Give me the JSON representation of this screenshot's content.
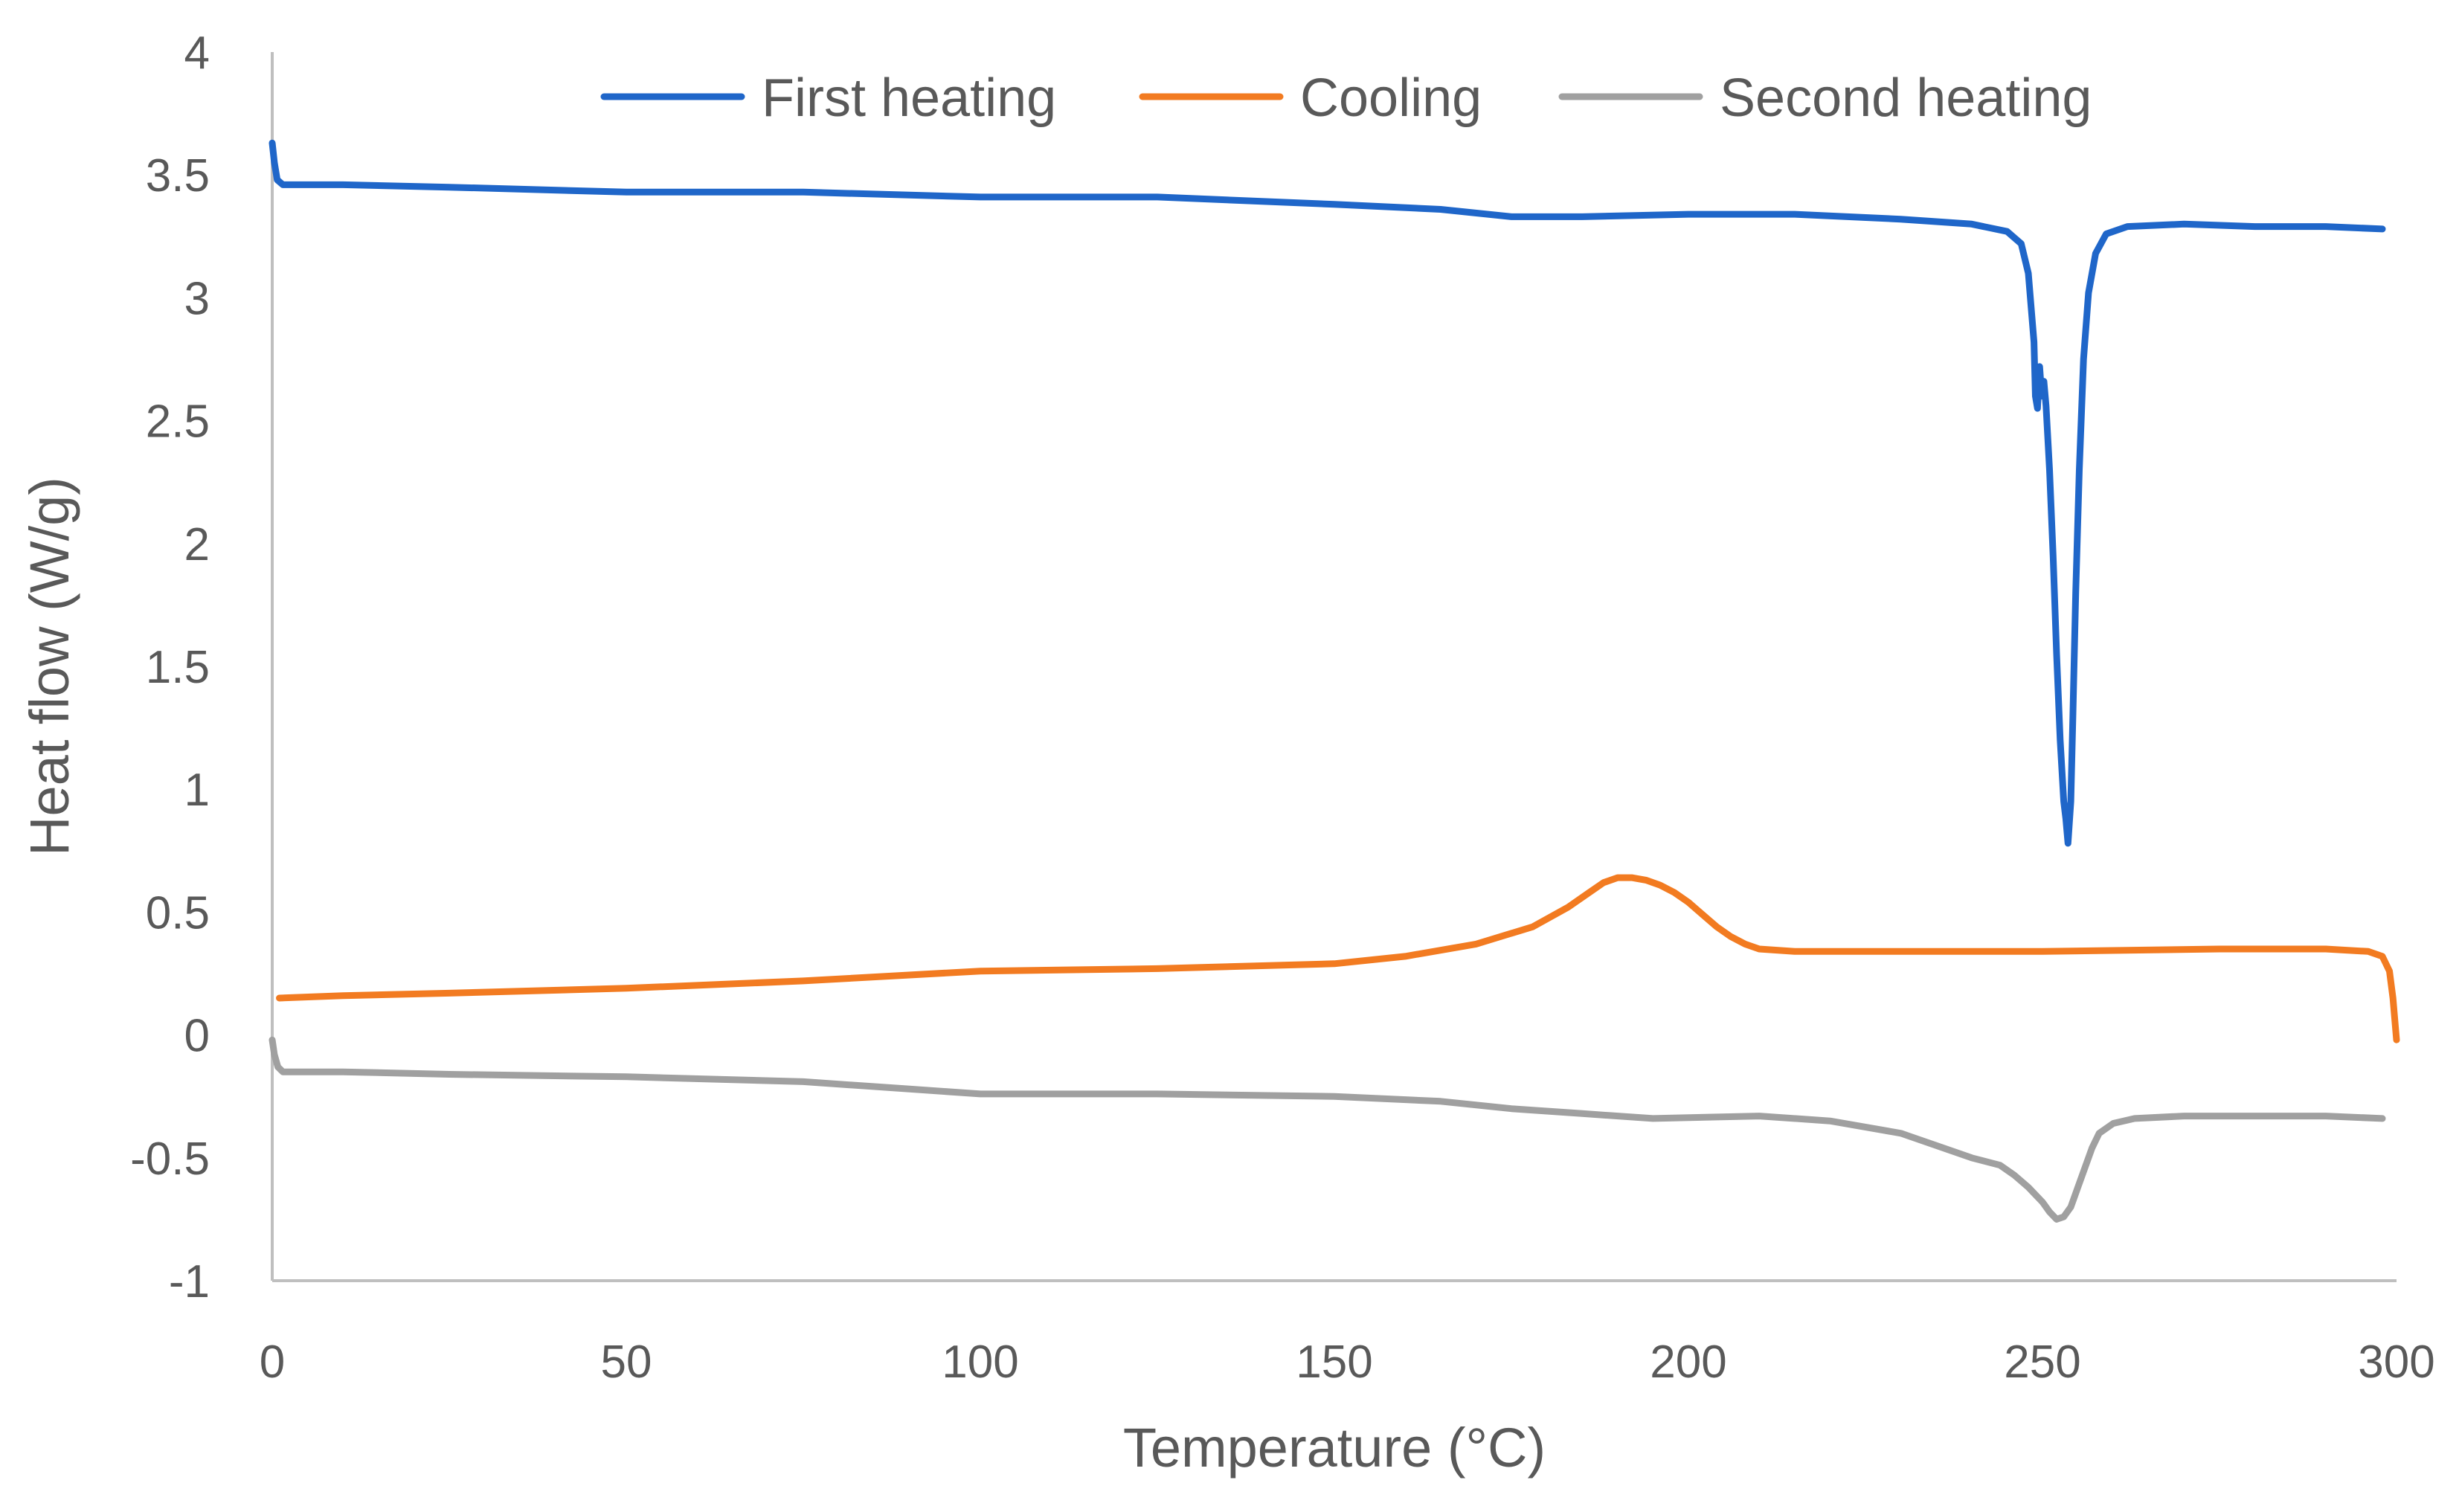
{
  "chart_data": {
    "type": "line",
    "title": "",
    "xlabel": "Temperature (°C)",
    "ylabel": "Heat flow (W/g)",
    "xlim": [
      0,
      300
    ],
    "ylim": [
      -1,
      4
    ],
    "xticks": [
      0,
      50,
      100,
      150,
      200,
      250,
      300
    ],
    "xtick_labels": [
      "0",
      "50",
      "100",
      "150",
      "200",
      "250",
      "300"
    ],
    "yticks": [
      -1,
      -0.5,
      0,
      0.5,
      1,
      1.5,
      2,
      2.5,
      3,
      3.5,
      4
    ],
    "ytick_labels": [
      "-1",
      "-0.5",
      "0",
      "0.5",
      "1",
      "1.5",
      "2",
      "2.5",
      "3",
      "3.5",
      "4"
    ],
    "grid": false,
    "legend_position": "top",
    "series": [
      {
        "name": "First heating",
        "color": "#1F66C9",
        "x": [
          0,
          0.3,
          0.7,
          1.5,
          3,
          10,
          25,
          50,
          75,
          100,
          125,
          150,
          165,
          175,
          185,
          200,
          215,
          230,
          240,
          245,
          247,
          248,
          248.8,
          249,
          249.3,
          249.6,
          249.9,
          250.2,
          250.5,
          251,
          251.5,
          252,
          252.5,
          253,
          253.3,
          253.6,
          254,
          254.3,
          254.7,
          255.2,
          255.8,
          256.5,
          257.5,
          259,
          262,
          270,
          280,
          290,
          298
        ],
        "y": [
          3.63,
          3.55,
          3.48,
          3.46,
          3.46,
          3.46,
          3.45,
          3.43,
          3.43,
          3.41,
          3.41,
          3.38,
          3.36,
          3.33,
          3.33,
          3.34,
          3.34,
          3.32,
          3.3,
          3.27,
          3.22,
          3.1,
          2.82,
          2.6,
          2.55,
          2.72,
          2.6,
          2.66,
          2.56,
          2.3,
          1.95,
          1.55,
          1.2,
          0.95,
          0.88,
          0.78,
          0.95,
          1.3,
          1.8,
          2.3,
          2.75,
          3.02,
          3.18,
          3.26,
          3.29,
          3.3,
          3.29,
          3.29,
          3.28
        ]
      },
      {
        "name": "Cooling",
        "color": "#F27B21",
        "x": [
          1,
          10,
          25,
          50,
          75,
          100,
          125,
          150,
          160,
          170,
          178,
          183,
          186,
          188,
          190,
          192,
          194,
          196,
          198,
          200,
          202,
          204,
          206,
          208,
          210,
          215,
          225,
          250,
          275,
          290,
          296,
          298,
          299,
          299.5,
          300
        ],
        "y": [
          0.15,
          0.16,
          0.17,
          0.19,
          0.22,
          0.26,
          0.27,
          0.29,
          0.32,
          0.37,
          0.44,
          0.52,
          0.58,
          0.62,
          0.64,
          0.64,
          0.63,
          0.61,
          0.58,
          0.54,
          0.49,
          0.44,
          0.4,
          0.37,
          0.35,
          0.34,
          0.34,
          0.34,
          0.35,
          0.35,
          0.34,
          0.32,
          0.26,
          0.15,
          -0.02
        ]
      },
      {
        "name": "Second heating",
        "color": "#A0A0A0",
        "x": [
          0,
          0.3,
          0.8,
          1.5,
          3,
          10,
          25,
          50,
          75,
          90,
          100,
          125,
          150,
          165,
          175,
          185,
          195,
          210,
          220,
          230,
          235,
          240,
          244,
          246,
          248,
          250,
          251,
          252,
          253,
          254,
          255,
          256,
          257,
          258,
          260,
          263,
          270,
          280,
          290,
          298
        ],
        "y": [
          -0.02,
          -0.08,
          -0.13,
          -0.15,
          -0.15,
          -0.15,
          -0.16,
          -0.17,
          -0.19,
          -0.22,
          -0.24,
          -0.24,
          -0.25,
          -0.27,
          -0.3,
          -0.32,
          -0.34,
          -0.33,
          -0.35,
          -0.4,
          -0.45,
          -0.5,
          -0.53,
          -0.57,
          -0.62,
          -0.68,
          -0.72,
          -0.75,
          -0.74,
          -0.7,
          -0.62,
          -0.54,
          -0.46,
          -0.4,
          -0.36,
          -0.34,
          -0.33,
          -0.33,
          -0.33,
          -0.34
        ]
      }
    ]
  }
}
